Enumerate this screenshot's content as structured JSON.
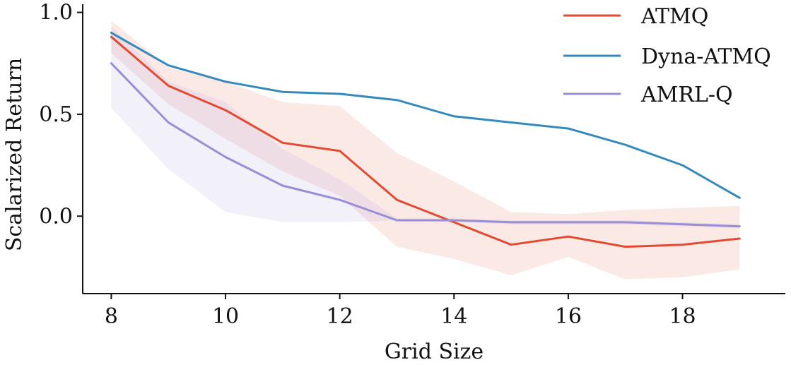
{
  "chart_data": {
    "type": "line",
    "title": "",
    "xlabel": "Grid Size",
    "ylabel": "Scalarized Return",
    "x": [
      8,
      9,
      10,
      11,
      12,
      13,
      14,
      15,
      16,
      17,
      18,
      19
    ],
    "xlim": [
      7.5,
      19.8
    ],
    "ylim": [
      -0.38,
      1.04
    ],
    "xticks": [
      8,
      10,
      12,
      14,
      16,
      18
    ],
    "yticks": [
      0.0,
      0.5,
      1.0
    ],
    "xtick_labels": [
      "8",
      "10",
      "12",
      "14",
      "16",
      "18"
    ],
    "ytick_labels": [
      "0.0",
      "0.5",
      "1.0"
    ],
    "grid": false,
    "legend_position": "top-right",
    "series": [
      {
        "name": "ATMQ",
        "color": "#e24a33",
        "values": [
          0.88,
          0.64,
          0.52,
          0.36,
          0.32,
          0.08,
          -0.03,
          -0.14,
          -0.1,
          -0.15,
          -0.14,
          -0.11
        ],
        "lower": [
          0.8,
          0.55,
          0.38,
          0.22,
          0.1,
          -0.15,
          -0.21,
          -0.29,
          -0.2,
          -0.31,
          -0.3,
          -0.26
        ],
        "upper": [
          0.96,
          0.73,
          0.66,
          0.56,
          0.54,
          0.31,
          0.17,
          0.02,
          0.01,
          0.03,
          0.04,
          0.05
        ]
      },
      {
        "name": "Dyna-ATMQ",
        "color": "#348abd",
        "values": [
          0.9,
          0.74,
          0.66,
          0.61,
          0.6,
          0.57,
          0.49,
          0.46,
          0.43,
          0.35,
          0.25,
          0.09
        ]
      },
      {
        "name": "AMRL-Q",
        "color": "#988ed5",
        "values": [
          0.75,
          0.46,
          0.29,
          0.15,
          0.08,
          -0.02,
          -0.02,
          -0.03,
          -0.03,
          -0.03,
          -0.04,
          -0.05
        ],
        "lower": [
          0.53,
          0.23,
          0.02,
          -0.03,
          -0.03,
          -0.02,
          -0.03,
          -0.04,
          -0.04,
          -0.04,
          -0.05,
          -0.06
        ],
        "upper": [
          0.93,
          0.66,
          0.56,
          0.33,
          0.18,
          -0.01,
          -0.01,
          -0.02,
          -0.02,
          -0.02,
          -0.03,
          -0.04
        ]
      }
    ]
  }
}
